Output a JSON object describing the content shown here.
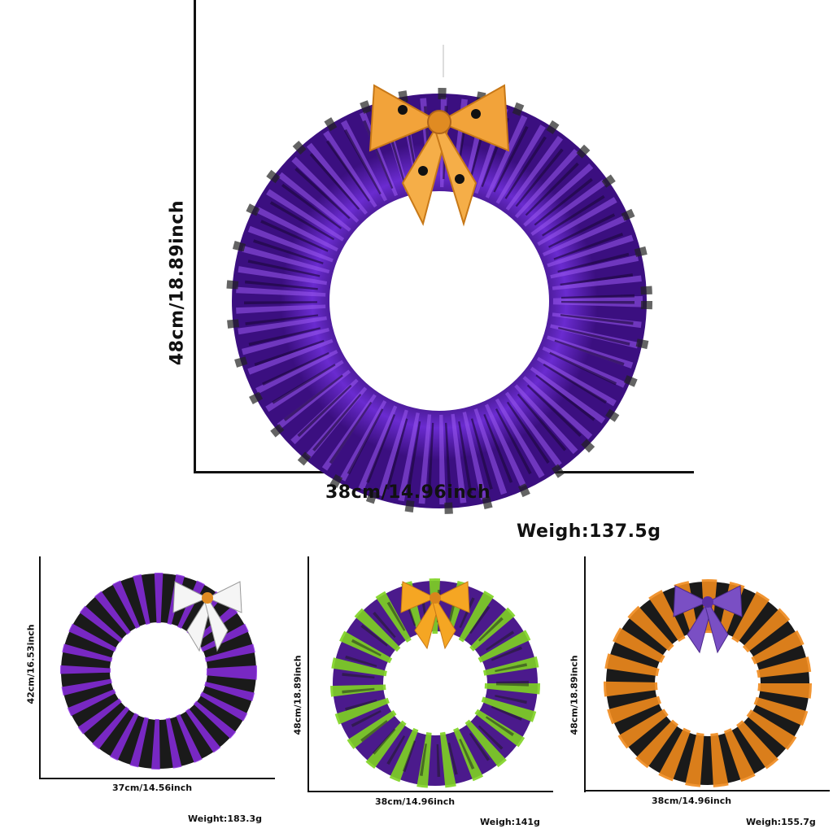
{
  "main_product": {
    "height_label": "48cm/18.89inch",
    "width_label": "38cm/14.96inch",
    "weight_label": "Weigh:137.5g",
    "wreath_color": "#5a1fb0",
    "bow_color": "#f2a33a"
  },
  "variants": [
    {
      "height_label": "42cm/16.53inch",
      "width_label": "37cm/14.56inch",
      "weight_label": "Weight:183.3g",
      "wreath_colors": [
        "#1a1a1a",
        "#8a2be2"
      ],
      "bow_color": "#f5f5f5"
    },
    {
      "height_label": "48cm/18.89inch",
      "width_label": "38cm/14.96inch",
      "weight_label": "Weigh:141g",
      "wreath_colors": [
        "#4b1a8c",
        "#7ed321"
      ],
      "bow_color": "#f5a623"
    },
    {
      "height_label": "48cm/18.89inch",
      "width_label": "38cm/14.96inch",
      "weight_label": "Weigh:155.7g",
      "wreath_colors": [
        "#1a1a1a",
        "#f08a1c"
      ],
      "bow_color": "#7a4fc4"
    }
  ]
}
